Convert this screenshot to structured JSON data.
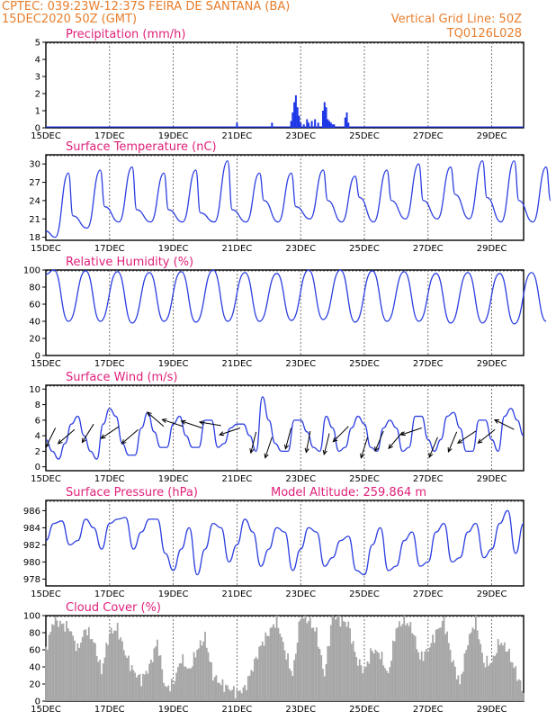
{
  "header": {
    "source_line": "CPTEC:  039:23W-12:37S  FEIRA DE SANTANA (BA)",
    "date_line": "15DEC2020 50Z (GMT)",
    "grid_line": "Vertical Grid Line: 50Z",
    "model_line": "TQ0126L028"
  },
  "colors": {
    "line_series": "#2c3fe0",
    "precip_bars": "#1f37e6",
    "cloud_bars": "#a6a6a6",
    "header_text": "#e87e2c",
    "panel_titles": "#e0207a",
    "arrows": "#000000"
  },
  "chart_data": [
    {
      "id": "precipitation",
      "type": "bar",
      "title": "Precipitation (mm/h)",
      "x_ticks": [
        "15DEC",
        "17DEC",
        "19DEC",
        "21DEC",
        "23DEC",
        "25DEC",
        "27DEC",
        "29DEC"
      ],
      "x_range_days": [
        15,
        30
      ],
      "ylim": [
        0,
        5
      ],
      "y_ticks": [
        0,
        1,
        2,
        3,
        4,
        5
      ],
      "x": [
        21.0,
        22.1,
        22.7,
        22.75,
        22.8,
        22.85,
        22.9,
        22.95,
        23.0,
        23.1,
        23.2,
        23.25,
        23.35,
        23.45,
        23.55,
        23.7,
        23.75,
        23.8,
        23.85,
        23.9,
        23.95,
        24.0,
        24.05,
        24.4,
        24.45,
        24.5
      ],
      "values": [
        0.3,
        0.3,
        0.4,
        0.9,
        1.5,
        1.9,
        1.2,
        0.7,
        0.3,
        0.2,
        0.5,
        0.3,
        0.4,
        0.5,
        0.3,
        1.0,
        1.5,
        1.2,
        0.5,
        0.4,
        0.3,
        0.2,
        0.2,
        0.6,
        0.9,
        0.3
      ],
      "baseline": 0.05
    },
    {
      "id": "temperature",
      "type": "line",
      "title": "Surface Temperature (nC)",
      "x_ticks": [
        "15DEC",
        "17DEC",
        "19DEC",
        "21DEC",
        "23DEC",
        "25DEC",
        "27DEC",
        "29DEC"
      ],
      "x_range_days": [
        15,
        30
      ],
      "ylim": [
        17.5,
        31.5
      ],
      "y_ticks": [
        18,
        21,
        24,
        27,
        30
      ],
      "daily_min": [
        18.0,
        19.5,
        20.5,
        20.5,
        20.5,
        20.5,
        20.5,
        20.5,
        21.0,
        20.5,
        20.5,
        21.0,
        21.0,
        21.0,
        20.5,
        20.5
      ],
      "daily_max": [
        28.5,
        29.0,
        29.5,
        28.5,
        29.0,
        30.5,
        28.5,
        28.5,
        29.0,
        28.0,
        29.0,
        30.0,
        29.5,
        30.5,
        30.5,
        29.5
      ],
      "min_hour": 7,
      "max_hour": 17,
      "daily_shoulder": {
        "x": [
          0.85,
          0.85,
          0.85,
          0.85,
          0.85,
          0.85,
          0.85,
          0.85,
          0.85,
          0.85,
          0.85,
          0.85,
          0.85,
          0.85,
          0.85,
          0.85
        ],
        "y": [
          21.5,
          23.0,
          22.5,
          22.5,
          22.0,
          22.5,
          24.0,
          23.0,
          24.0,
          24.5,
          24.0,
          24.0,
          25.0,
          24.5,
          24.0,
          24.0
        ]
      }
    },
    {
      "id": "humidity",
      "type": "line",
      "title": "Relative Humidity (%)",
      "x_ticks": [
        "15DEC",
        "17DEC",
        "19DEC",
        "21DEC",
        "23DEC",
        "25DEC",
        "27DEC",
        "29DEC"
      ],
      "x_range_days": [
        15,
        30
      ],
      "ylim": [
        0,
        100
      ],
      "y_ticks": [
        0,
        20,
        40,
        60,
        80,
        100
      ],
      "daily_max": [
        100,
        99,
        98,
        97,
        98,
        100,
        97,
        96,
        100,
        100,
        99,
        98,
        96,
        97,
        96,
        97
      ],
      "daily_min": [
        40,
        40,
        38,
        40,
        39,
        40,
        40,
        41,
        42,
        39,
        40,
        40,
        38,
        38,
        37,
        40
      ],
      "max_hour": 6,
      "min_hour": 17
    },
    {
      "id": "wind",
      "type": "line",
      "title": "Surface Wind (m/s)",
      "x_ticks": [
        "15DEC",
        "17DEC",
        "19DEC",
        "21DEC",
        "23DEC",
        "25DEC",
        "27DEC",
        "29DEC"
      ],
      "x_range_days": [
        15,
        30
      ],
      "ylim": [
        -0.5,
        10.5
      ],
      "y_ticks": [
        0,
        2,
        4,
        6,
        8,
        10
      ],
      "x": [
        15.0,
        15.2,
        15.4,
        15.6,
        15.8,
        16.0,
        16.2,
        16.4,
        16.6,
        16.8,
        17.0,
        17.2,
        17.4,
        17.6,
        17.8,
        18.0,
        18.2,
        18.4,
        18.6,
        18.8,
        19.0,
        19.2,
        19.4,
        19.6,
        19.8,
        20.0,
        20.2,
        20.4,
        20.6,
        20.8,
        21.0,
        21.2,
        21.4,
        21.6,
        21.8,
        22.0,
        22.2,
        22.4,
        22.6,
        22.8,
        23.0,
        23.2,
        23.4,
        23.6,
        23.8,
        24.0,
        24.2,
        24.4,
        24.6,
        24.8,
        25.0,
        25.2,
        25.4,
        25.6,
        25.8,
        26.0,
        26.2,
        26.4,
        26.6,
        26.8,
        27.0,
        27.2,
        27.4,
        27.6,
        27.8,
        28.0,
        28.2,
        28.4,
        28.6,
        28.8,
        29.0,
        29.2,
        29.4,
        29.6,
        29.8,
        30.0
      ],
      "values": [
        3.5,
        2.0,
        1.0,
        3.0,
        5.5,
        6.5,
        4.0,
        2.0,
        1.0,
        5.5,
        7.5,
        6.5,
        3.0,
        1.5,
        1.5,
        5.0,
        7.0,
        4.5,
        2.5,
        2.5,
        5.5,
        6.5,
        4.0,
        2.5,
        2.5,
        6.0,
        6.0,
        2.5,
        3.0,
        5.0,
        5.5,
        5.5,
        4.0,
        2.0,
        9.0,
        6.0,
        3.0,
        2.0,
        2.0,
        6.0,
        6.0,
        4.5,
        2.5,
        2.0,
        6.5,
        5.0,
        2.0,
        2.5,
        5.0,
        6.5,
        5.5,
        2.5,
        2.0,
        5.0,
        6.0,
        5.0,
        2.0,
        2.5,
        6.5,
        6.5,
        3.5,
        2.0,
        3.5,
        6.5,
        7.0,
        5.0,
        2.0,
        2.0,
        6.0,
        6.0,
        3.5,
        2.0,
        6.5,
        7.5,
        6.0,
        4.0
      ],
      "arrows": {
        "x": [
          15.3,
          15.9,
          16.5,
          17.3,
          17.9,
          18.7,
          19.3,
          19.9,
          20.5,
          21.1,
          21.6,
          22.1,
          22.7,
          23.3,
          23.9,
          24.5,
          25.1,
          25.6,
          26.2,
          26.8,
          27.3,
          27.9,
          28.5,
          29.1,
          29.7
        ],
        "y": [
          5.0,
          4.8,
          5.5,
          5.2,
          4.8,
          5.2,
          5.2,
          5.0,
          5.3,
          5.0,
          4.5,
          3.8,
          5.0,
          4.6,
          4.3,
          5.2,
          3.8,
          4.6,
          4.5,
          5.0,
          3.8,
          4.5,
          4.6,
          4.8,
          4.8
        ],
        "u": [
          -0.6,
          -0.7,
          -0.5,
          -0.6,
          -0.7,
          -0.7,
          -0.6,
          -0.6,
          -0.6,
          -0.6,
          -0.3,
          -0.5,
          -0.4,
          -0.3,
          -0.4,
          -0.6,
          -0.5,
          -0.5,
          -0.5,
          -0.6,
          -0.5,
          -0.5,
          -0.6,
          -0.5,
          -0.6
        ],
        "v": [
          -1.2,
          -0.6,
          -0.8,
          -0.4,
          -0.6,
          0.6,
          0.2,
          0.2,
          0.1,
          -0.2,
          -1.2,
          -1.5,
          -1.5,
          -1.6,
          -1.6,
          -0.6,
          -1.6,
          -1.2,
          -0.6,
          -0.2,
          -1.2,
          -1.2,
          -0.4,
          -0.4,
          0.3
        ]
      }
    },
    {
      "id": "pressure",
      "type": "line",
      "title": "Surface Pressure (hPa)",
      "annotation": "Model Altitude: 259.864  m",
      "x_ticks": [
        "15DEC",
        "17DEC",
        "19DEC",
        "21DEC",
        "23DEC",
        "25DEC",
        "27DEC",
        "29DEC"
      ],
      "x_range_days": [
        15,
        30
      ],
      "ylim": [
        977.2,
        987.2
      ],
      "y_ticks": [
        978,
        980,
        982,
        984,
        986
      ],
      "x": [
        15.0,
        15.25,
        15.5,
        15.75,
        16.0,
        16.25,
        16.5,
        16.75,
        17.0,
        17.25,
        17.5,
        17.75,
        18.0,
        18.25,
        18.5,
        18.75,
        19.0,
        19.25,
        19.5,
        19.75,
        20.0,
        20.25,
        20.5,
        20.75,
        21.0,
        21.25,
        21.5,
        21.75,
        22.0,
        22.25,
        22.5,
        22.75,
        23.0,
        23.25,
        23.5,
        23.75,
        24.0,
        24.25,
        24.5,
        24.75,
        25.0,
        25.25,
        25.5,
        25.75,
        26.0,
        26.25,
        26.5,
        26.75,
        27.0,
        27.25,
        27.5,
        27.75,
        28.0,
        28.25,
        28.5,
        28.75,
        29.0,
        29.25,
        29.5,
        29.75,
        30.0
      ],
      "values": [
        982.5,
        984.5,
        984.8,
        982.0,
        982.5,
        985.0,
        984.0,
        981.5,
        984.5,
        985.0,
        985.2,
        981.5,
        983.5,
        985.0,
        985.0,
        981.0,
        979.0,
        981.5,
        984.0,
        978.5,
        981.5,
        984.5,
        984.0,
        980.0,
        982.0,
        985.0,
        983.5,
        979.5,
        981.5,
        984.0,
        983.5,
        979.0,
        981.5,
        984.0,
        983.5,
        979.5,
        980.5,
        982.5,
        983.0,
        979.0,
        978.5,
        982.0,
        984.0,
        979.0,
        979.5,
        982.5,
        983.5,
        979.5,
        980.0,
        983.5,
        984.5,
        980.0,
        980.5,
        983.5,
        984.5,
        980.5,
        981.5,
        984.5,
        986.0,
        981.0,
        984.5
      ]
    },
    {
      "id": "cloud",
      "type": "bar",
      "title": "Cloud Cover (%)",
      "x_ticks": [
        "15DEC",
        "17DEC",
        "19DEC",
        "21DEC",
        "23DEC",
        "25DEC",
        "27DEC",
        "29DEC"
      ],
      "x_range_days": [
        15,
        30
      ],
      "ylim": [
        0,
        100
      ],
      "y_ticks": [
        0,
        20,
        40,
        60,
        80,
        100
      ],
      "x": [
        15.0,
        15.25,
        15.5,
        15.75,
        16.0,
        16.25,
        16.5,
        16.75,
        17.0,
        17.25,
        17.5,
        17.75,
        18.0,
        18.25,
        18.5,
        18.75,
        19.0,
        19.25,
        19.5,
        19.75,
        20.0,
        20.25,
        20.5,
        20.75,
        21.0,
        21.25,
        21.5,
        21.75,
        22.0,
        22.25,
        22.5,
        22.75,
        23.0,
        23.25,
        23.5,
        23.75,
        24.0,
        24.25,
        24.5,
        24.75,
        25.0,
        25.25,
        25.5,
        25.75,
        26.0,
        26.25,
        26.5,
        26.75,
        27.0,
        27.25,
        27.5,
        27.75,
        28.0,
        28.25,
        28.5,
        28.75,
        29.0,
        29.25,
        29.5,
        29.75,
        30.0
      ],
      "values": [
        60,
        95,
        90,
        85,
        60,
        85,
        70,
        35,
        80,
        85,
        55,
        35,
        25,
        40,
        70,
        15,
        20,
        50,
        35,
        60,
        75,
        30,
        20,
        15,
        10,
        15,
        40,
        65,
        80,
        95,
        60,
        30,
        100,
        95,
        80,
        30,
        100,
        95,
        90,
        50,
        35,
        60,
        55,
        30,
        85,
        95,
        85,
        50,
        60,
        80,
        95,
        50,
        20,
        70,
        95,
        45,
        45,
        70,
        60,
        35,
        10
      ]
    }
  ]
}
